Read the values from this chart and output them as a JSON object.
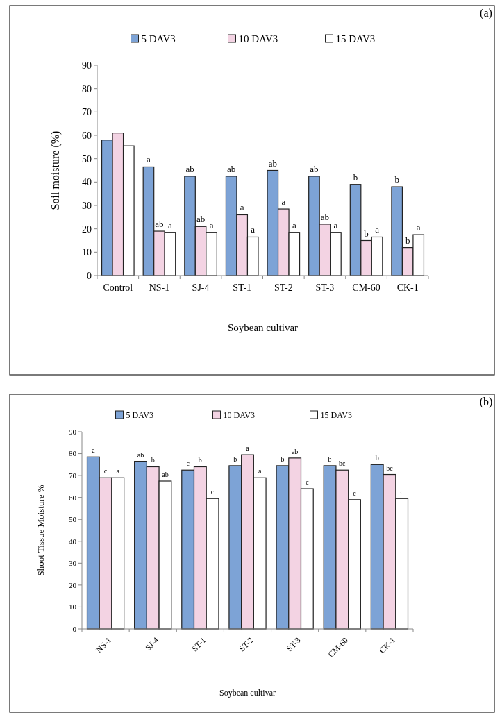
{
  "chart_data": [
    {
      "type": "bar",
      "xlabel": "Soybean cultivar",
      "ylabel": "Soil moisture (%)",
      "categories": [
        "Control",
        "NS-1",
        "SJ-4",
        "ST-1",
        "ST-2",
        "ST-3",
        "CM-60",
        "CK-1"
      ],
      "series": [
        {
          "name": "5 DAV3",
          "color": "#7da3d6",
          "values": [
            58,
            46.5,
            42.5,
            42.5,
            45,
            42.5,
            39,
            38
          ],
          "value_labels": [
            null,
            "a",
            "ab",
            "ab",
            "ab",
            "ab",
            "b",
            "b"
          ]
        },
        {
          "name": "10 DAV3",
          "color": "#f3d3e3",
          "values": [
            61,
            19,
            21,
            26,
            28.5,
            22,
            15,
            12
          ],
          "value_labels": [
            null,
            "ab",
            "ab",
            "a",
            "a",
            "ab",
            "b",
            "b"
          ]
        },
        {
          "name": "15 DAV3",
          "color": "#ffffff",
          "values": [
            55.5,
            18.5,
            18.5,
            16.5,
            18.5,
            18.5,
            16.5,
            17.5
          ],
          "value_labels": [
            null,
            "a",
            "a",
            "a",
            "a",
            "a",
            "a",
            "a"
          ]
        }
      ],
      "ylim": [
        0,
        90
      ],
      "yticks": [
        0,
        10,
        20,
        30,
        40,
        50,
        60,
        70,
        80,
        90
      ],
      "legend": "top",
      "grid": false,
      "annotations": [
        "(a)"
      ]
    },
    {
      "type": "bar",
      "xlabel": "Soybean cultivar",
      "ylabel": "Shoot Tissue Moisture %",
      "categories": [
        "NS-1",
        "SJ-4",
        "ST-1",
        "ST-2",
        "ST-3",
        "CM-60",
        "CK-1"
      ],
      "series": [
        {
          "name": "5 DAV3",
          "color": "#7da3d6",
          "values": [
            78.5,
            76.5,
            72.5,
            74.5,
            74.5,
            74.5,
            75
          ],
          "value_labels": [
            "a",
            "ab",
            "c",
            "b",
            "b",
            "b",
            "b"
          ]
        },
        {
          "name": "10 DAV3",
          "color": "#f3d3e3",
          "values": [
            69,
            74,
            74,
            79.5,
            78,
            72.5,
            70.5
          ],
          "value_labels": [
            "c",
            "b",
            "b",
            "a",
            "ab",
            "bc",
            "bc"
          ]
        },
        {
          "name": "15 DAV3",
          "color": "#ffffff",
          "values": [
            69,
            67.5,
            59.5,
            69,
            64,
            59,
            59.5
          ],
          "value_labels": [
            "a",
            "ab",
            "c",
            "a",
            "c",
            "c",
            "c"
          ]
        }
      ],
      "ylim": [
        0,
        90
      ],
      "yticks": [
        0,
        10,
        20,
        30,
        40,
        50,
        60,
        70,
        80,
        90
      ],
      "legend": "top",
      "grid": false,
      "annotations": [
        "(b)"
      ]
    }
  ]
}
